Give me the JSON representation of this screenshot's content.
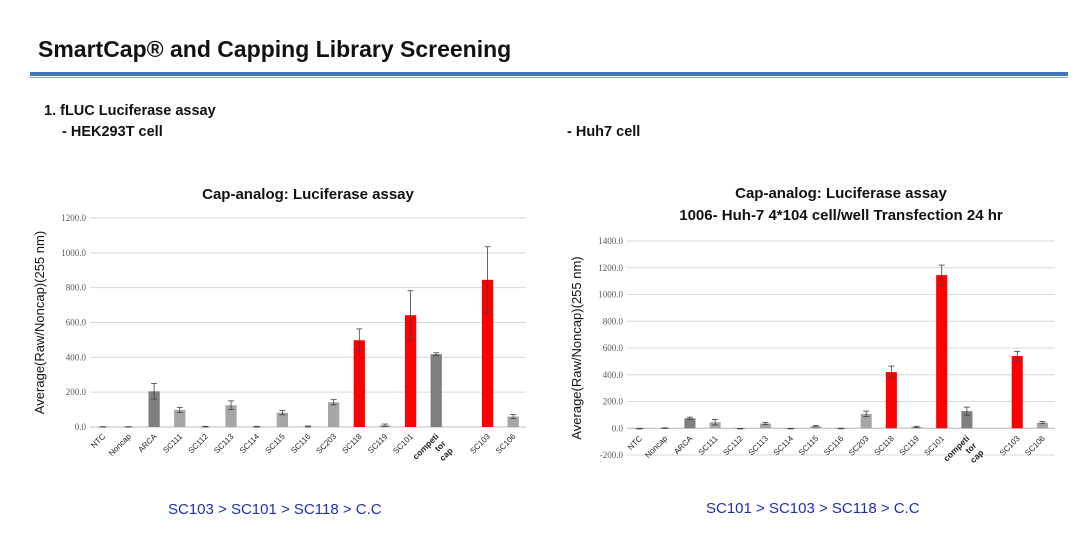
{
  "header": {
    "title": "SmartCap® and Capping Library Screening"
  },
  "section": {
    "heading": "1. fLUC Luciferase assay",
    "left_sub": "- HEK293T cell",
    "right_sub": "- Huh7 cell"
  },
  "rankings": {
    "left": "SC103 > SC101 > SC118 > C.C",
    "right": "SC101 > SC103 > SC118 > C.C"
  },
  "colors": {
    "red": "#ff0000",
    "dark_gray": "#7f7f7f",
    "light_gray": "#a6a6a6",
    "accent_rule": "#4472c4"
  },
  "chart_data": [
    {
      "type": "bar",
      "title": "Cap-analog: Luciferase assay",
      "subtitle": "",
      "ylabel": "Average(Raw/Noncap)(255 nm)",
      "xlabel": "",
      "ylim": [
        0,
        1200
      ],
      "ytick_step": 200,
      "ytick_labels": [
        "0.0",
        "200.0",
        "400.0",
        "600.0",
        "800.0",
        "1000.0",
        "1200.0"
      ],
      "grid": true,
      "categories": [
        "NTC",
        "Noncap",
        "ARCA",
        "SC111",
        "SC112",
        "SC113",
        "SC114",
        "SC115",
        "SC116",
        "SC203",
        "SC118",
        "SC119",
        "SC101",
        "competi tor cap",
        "",
        "SC103",
        "SC106"
      ],
      "values": [
        1,
        1,
        205,
        98,
        2,
        125,
        2,
        82,
        3,
        142,
        498,
        10,
        642,
        418,
        null,
        845,
        60
      ],
      "errors": [
        1,
        1,
        45,
        15,
        2,
        25,
        2,
        12,
        3,
        15,
        65,
        7,
        140,
        8,
        null,
        190,
        12
      ],
      "bar_colors": [
        "light",
        "light",
        "dark",
        "light",
        "light",
        "light",
        "light",
        "light",
        "light",
        "light",
        "red",
        "light",
        "red",
        "dark",
        null,
        "red",
        "light"
      ]
    },
    {
      "type": "bar",
      "title": "Cap-analog: Luciferase assay",
      "subtitle": "1006- Huh-7 4*104 cell/well Transfection 24 hr",
      "ylabel": "Average(Raw/Noncap)(255 nm)",
      "xlabel": "",
      "ylim": [
        -200,
        1400
      ],
      "ytick_step": 200,
      "ytick_labels": [
        "-200.0",
        "0.0",
        "200.0",
        "400.0",
        "600.0",
        "800.0",
        "1000.0",
        "1200.0",
        "1400.0"
      ],
      "grid": true,
      "categories": [
        "NTC",
        "Noncap",
        "ARCA",
        "SC111",
        "SC112",
        "SC113",
        "SC114",
        "SC115",
        "SC116",
        "SC203",
        "SC118",
        "SC119",
        "SC101",
        "competi tor cap",
        "",
        "SC103",
        "SC106"
      ],
      "values": [
        -3,
        1,
        75,
        45,
        -3,
        35,
        -3,
        15,
        -2,
        108,
        420,
        10,
        1145,
        128,
        null,
        540,
        42
      ],
      "errors": [
        2,
        2,
        8,
        20,
        2,
        8,
        2,
        5,
        2,
        20,
        45,
        5,
        75,
        30,
        null,
        35,
        8
      ],
      "bar_colors": [
        "light",
        "light",
        "dark",
        "light",
        "light",
        "light",
        "light",
        "light",
        "light",
        "light",
        "red",
        "light",
        "red",
        "dark",
        null,
        "red",
        "light"
      ]
    }
  ]
}
